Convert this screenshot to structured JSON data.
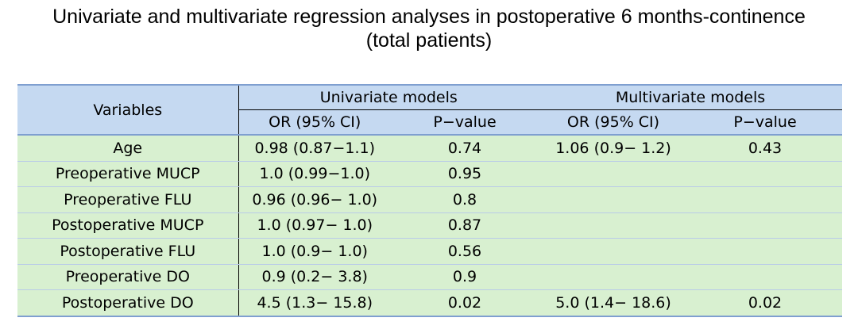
{
  "title": {
    "line1": "Univariate and multivariate regression analyses in postoperative 6 months-continence",
    "line2": "(total patients)"
  },
  "table": {
    "header": {
      "variables": "Variables",
      "univariate": "Univariate models",
      "multivariate": "Multivariate models",
      "uni_or": "OR (95% CI)",
      "uni_p": "P−value",
      "multi_or": "OR (95% CI)",
      "multi_p": "P−value"
    },
    "rows": [
      {
        "variable": "Age",
        "uni_or": "0.98 (0.87−1.1)",
        "uni_p": "0.74",
        "multi_or": "1.06 (0.9− 1.2)",
        "multi_p": "0.43"
      },
      {
        "variable": "Preoperative MUCP",
        "uni_or": "1.0 (0.99−1.0)",
        "uni_p": "0.95",
        "multi_or": "",
        "multi_p": ""
      },
      {
        "variable": "Preoperative FLU",
        "uni_or": "0.96 (0.96− 1.0)",
        "uni_p": "0.8",
        "multi_or": "",
        "multi_p": ""
      },
      {
        "variable": "Postoperative MUCP",
        "uni_or": "1.0 (0.97− 1.0)",
        "uni_p": "0.87",
        "multi_or": "",
        "multi_p": ""
      },
      {
        "variable": "Postoperative FLU",
        "uni_or": "1.0 (0.9− 1.0)",
        "uni_p": "0.56",
        "multi_or": "",
        "multi_p": ""
      },
      {
        "variable": "Preoperative DO",
        "uni_or": "0.9 (0.2− 3.8)",
        "uni_p": "0.9",
        "multi_or": "",
        "multi_p": ""
      },
      {
        "variable": "Postoperative DO",
        "uni_or": "4.5 (1.3− 15.8)",
        "uni_p": "0.02",
        "multi_or": "5.0 (1.4− 18.6)",
        "multi_p": "0.02"
      }
    ]
  },
  "colors": {
    "header_bg": "#c5d9f1",
    "body_bg": "#d8f0d0"
  }
}
